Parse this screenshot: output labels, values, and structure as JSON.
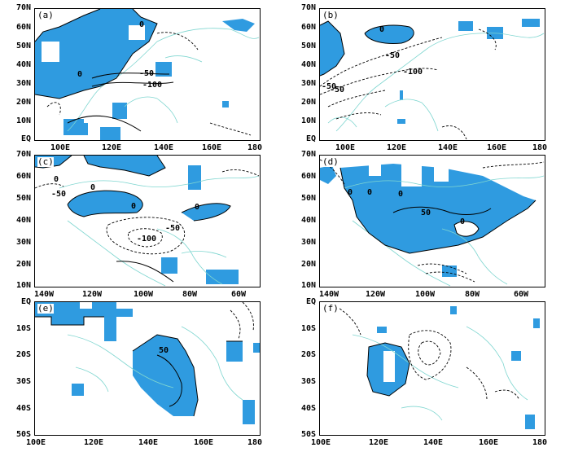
{
  "panels": [
    {
      "label": "(a)",
      "y_ticks": [
        "70N",
        "60N",
        "50N",
        "40N",
        "30N",
        "20N",
        "10N",
        "EQ"
      ],
      "x_ticks": [
        "100E",
        "120E",
        "140E",
        "160E",
        "180"
      ],
      "contour_labels": [
        "0",
        "0",
        "-50",
        "-100"
      ]
    },
    {
      "label": "(b)",
      "y_ticks": [
        "70N",
        "60N",
        "50N",
        "40N",
        "30N",
        "20N",
        "10N",
        "EQ"
      ],
      "x_ticks": [
        "100E",
        "120E",
        "140E",
        "160E",
        "180"
      ],
      "contour_labels": [
        "0",
        "-50",
        "-100",
        "-50",
        "-50"
      ]
    },
    {
      "label": "(c)",
      "y_ticks": [
        "70N",
        "60N",
        "50N",
        "40N",
        "30N",
        "20N",
        "10N"
      ],
      "x_ticks": [
        "140W",
        "120W",
        "100W",
        "80W",
        "60W"
      ],
      "contour_labels": [
        "0",
        "-50",
        "0",
        "0",
        "0",
        "-50",
        "-100"
      ]
    },
    {
      "label": "(d)",
      "y_ticks": [
        "70N",
        "60N",
        "50N",
        "40N",
        "30N",
        "20N",
        "10N"
      ],
      "x_ticks": [
        "140W",
        "120W",
        "100W",
        "80W",
        "60W"
      ],
      "contour_labels": [
        "0",
        "0",
        "0",
        "50",
        "0"
      ]
    },
    {
      "label": "(e)",
      "y_ticks": [
        "EQ",
        "10S",
        "20S",
        "30S",
        "40S",
        "50S"
      ],
      "x_ticks": [
        "100E",
        "120E",
        "140E",
        "160E",
        "180"
      ],
      "contour_labels": [
        "50"
      ]
    },
    {
      "label": "(f)",
      "y_ticks": [
        "EQ",
        "10S",
        "20S",
        "30S",
        "40S",
        "50S"
      ],
      "x_ticks": [
        "100E",
        "120E",
        "140E",
        "160E",
        "180"
      ],
      "contour_labels": []
    }
  ],
  "colors": {
    "significant_fill": "#2f9be0",
    "coastline": "#7fd6d0",
    "contour": "#000000"
  }
}
